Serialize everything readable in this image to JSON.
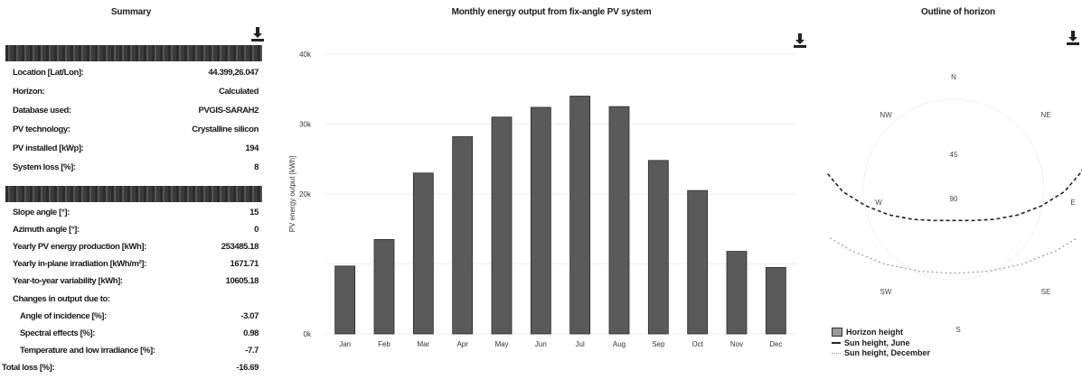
{
  "summary": {
    "title": "Summary",
    "rows_top": [
      {
        "label": "Location [Lat/Lon]:",
        "value": "44.399,26.047"
      },
      {
        "label": "Horizon:",
        "value": "Calculated"
      },
      {
        "label": "Database used:",
        "value": "PVGIS-SARAH2"
      },
      {
        "label": "PV technology:",
        "value": "Crystalline silicon"
      },
      {
        "label": "PV installed [kWp]:",
        "value": "194"
      },
      {
        "label": "System loss [%]:",
        "value": "8"
      }
    ],
    "rows_bottom": [
      {
        "label": "Slope angle [°]:",
        "value": "15"
      },
      {
        "label": "Azimuth angle [°]:",
        "value": "0"
      },
      {
        "label": "Yearly PV energy production [kWh]:",
        "value": "253485.18"
      },
      {
        "label": "Yearly in-plane irradiation [kWh/m²]:",
        "value": "1671.71"
      },
      {
        "label": "Year-to-year variability [kWh]:",
        "value": "10605.18"
      },
      {
        "label": "Changes in output due to:",
        "value": ""
      },
      {
        "label": "Angle of incidence [%]:",
        "value": "-3.07"
      },
      {
        "label": "Spectral effects [%]:",
        "value": "0.98"
      },
      {
        "label": "Temperature and low irradiance [%]:",
        "value": "-7.7"
      },
      {
        "label": "Total loss [%]:",
        "value": "-16.69"
      }
    ]
  },
  "chart_data": [
    {
      "type": "bar",
      "title": "Monthly energy output from fix-angle PV system",
      "ylabel": "PV energy output [kWh]",
      "categories": [
        "Jan",
        "Feb",
        "Mar",
        "Apr",
        "May",
        "Jun",
        "Jul",
        "Aug",
        "Sep",
        "Oct",
        "Nov",
        "Dec"
      ],
      "values": [
        9700,
        13500,
        23000,
        28200,
        31000,
        32400,
        34000,
        32500,
        24800,
        20500,
        11800,
        9500
      ],
      "ytick_labels": [
        "0k",
        "",
        "20k",
        "30k",
        "40k"
      ],
      "yticks": [
        0,
        10000,
        20000,
        30000,
        40000
      ],
      "ylim": [
        0,
        40000
      ],
      "bar_color": "#5a5a5a"
    },
    {
      "type": "polar-line",
      "title": "Outline of horizon",
      "direction_labels": {
        "n": "N",
        "ne": "NE",
        "e": "E",
        "se": "SE",
        "s": "S",
        "sw": "SW",
        "w": "W",
        "nw": "NW"
      },
      "radial_labels": [
        "45",
        "90"
      ],
      "legend": [
        "Horizon height",
        "Sun height, June",
        "Sun height, December"
      ],
      "sun_june": {
        "azimuth_deg": [
          -120,
          -105,
          -90,
          -75,
          -60,
          -45,
          -30,
          -15,
          0,
          15,
          30,
          45,
          60,
          75,
          90,
          105,
          120
        ],
        "elevation_deg": [
          5,
          15,
          25,
          35,
          45,
          53,
          60,
          65,
          67,
          65,
          60,
          53,
          45,
          35,
          25,
          15,
          5
        ]
      },
      "sun_december": {
        "azimuth_deg": [
          -55,
          -45,
          -30,
          -15,
          0,
          15,
          30,
          45,
          55
        ],
        "elevation_deg": [
          2,
          8,
          15,
          20,
          22,
          20,
          15,
          8,
          2
        ]
      }
    }
  ]
}
